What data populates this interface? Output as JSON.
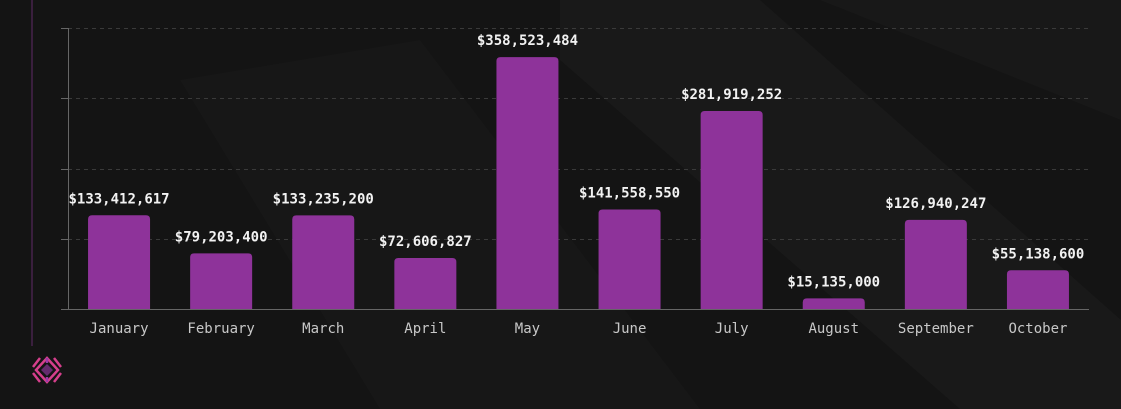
{
  "chart_data": {
    "type": "bar",
    "categories": [
      "January",
      "February",
      "March",
      "April",
      "May",
      "June",
      "July",
      "August",
      "September",
      "October"
    ],
    "values": [
      133412617,
      79203400,
      133235200,
      72606827,
      358523484,
      141558550,
      281919252,
      15135000,
      126940247,
      55138600
    ],
    "data_labels": [
      "$133,412,617",
      "$79,203,400",
      "$133,235,200",
      "$72,606,827",
      "$358,523,484",
      "$141,558,550",
      "$281,919,252",
      "$15,135,000",
      "$126,940,247",
      "$55,138,600"
    ],
    "title": "",
    "xlabel": "",
    "ylabel": "",
    "ylim": [
      0,
      400000000
    ],
    "y_tick_step": 100000000,
    "y_tick_labels_shown": false,
    "grid": true,
    "bar_color": "#8e339a",
    "background_color": "#141414"
  },
  "logo": {
    "name": "brand-logo-icon",
    "colors": [
      "#d63f8c",
      "#9b3aa8"
    ]
  }
}
